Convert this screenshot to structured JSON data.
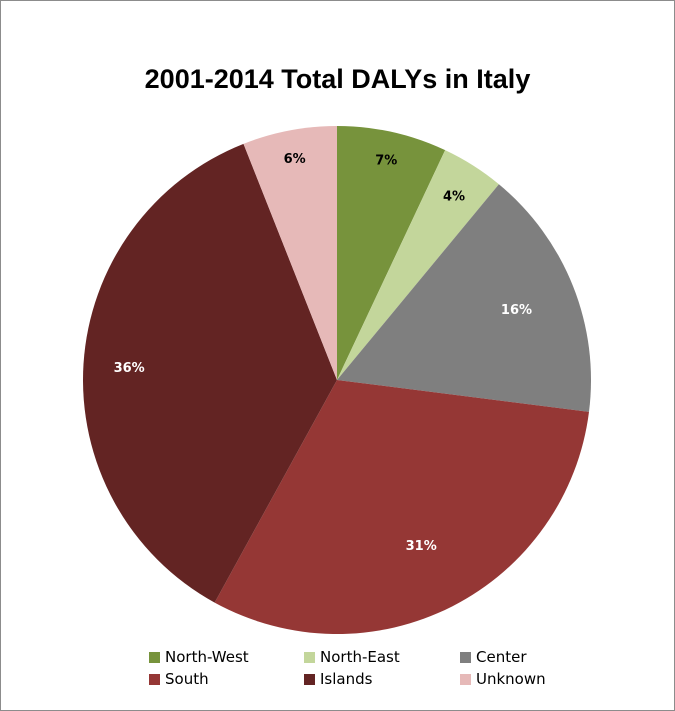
{
  "chart_data": {
    "type": "pie",
    "title": "2001-2014 Total DALYs in Italy",
    "slices": [
      {
        "name": "North-West",
        "value": 7,
        "label": "7%",
        "color": "#77933c",
        "label_color": "#000000"
      },
      {
        "name": "North-East",
        "value": 4,
        "label": "4%",
        "color": "#c3d69b",
        "label_color": "#000000"
      },
      {
        "name": "Center",
        "value": 16,
        "label": "16%",
        "color": "#7f7f7f",
        "label_color": "#ffffff"
      },
      {
        "name": "South",
        "value": 31,
        "label": "31%",
        "color": "#953735",
        "label_color": "#ffffff"
      },
      {
        "name": "Islands",
        "value": 36,
        "label": "36%",
        "color": "#632423",
        "label_color": "#ffffff"
      },
      {
        "name": "Unknown",
        "value": 6,
        "label": "6%",
        "color": "#e6b9b8",
        "label_color": "#000000"
      }
    ],
    "start_angle_deg": 0,
    "direction": "clockwise",
    "legend_position": "bottom"
  }
}
